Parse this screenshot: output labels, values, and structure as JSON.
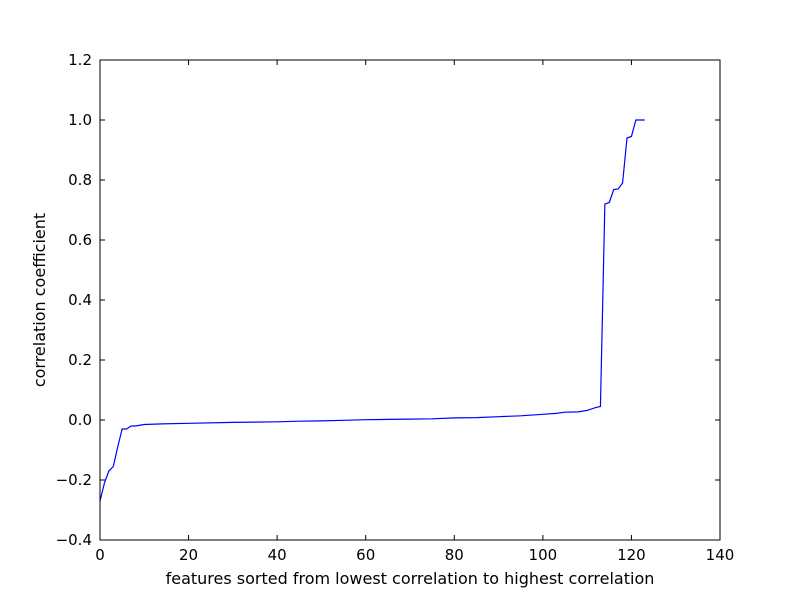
{
  "chart_data": {
    "type": "line",
    "title": "",
    "xlabel": "features sorted from lowest correlation to highest correlation",
    "ylabel": "correlation coefficient",
    "xlim": [
      0,
      140
    ],
    "ylim": [
      -0.4,
      1.2
    ],
    "x_ticks": [
      0,
      20,
      40,
      60,
      80,
      100,
      120,
      140
    ],
    "x_tick_labels": [
      "0",
      "20",
      "40",
      "60",
      "80",
      "100",
      "120",
      "140"
    ],
    "y_ticks": [
      -0.4,
      -0.2,
      0.0,
      0.2,
      0.4,
      0.6,
      0.8,
      1.0,
      1.2
    ],
    "y_tick_labels": [
      "−0.4",
      "−0.2",
      "0.0",
      "0.2",
      "0.4",
      "0.6",
      "0.8",
      "1.0",
      "1.2"
    ],
    "grid": false,
    "legend": "none",
    "line_color": "#0000ff",
    "series": [
      {
        "x": [
          0,
          1,
          2,
          3,
          4,
          5,
          6,
          7,
          8,
          10,
          14,
          20,
          30,
          40,
          45,
          50,
          55,
          60,
          65,
          70,
          75,
          80,
          85,
          90,
          95,
          100,
          103,
          105,
          108,
          110,
          112,
          113,
          114,
          115,
          116,
          117,
          118,
          119,
          120,
          121,
          122,
          123
        ],
        "y": [
          -0.27,
          -0.21,
          -0.17,
          -0.155,
          -0.09,
          -0.03,
          -0.03,
          -0.02,
          -0.02,
          -0.015,
          -0.013,
          -0.011,
          -0.008,
          -0.006,
          -0.004,
          -0.003,
          -0.001,
          0.001,
          0.002,
          0.003,
          0.004,
          0.007,
          0.008,
          0.011,
          0.014,
          0.019,
          0.022,
          0.026,
          0.027,
          0.032,
          0.042,
          0.045,
          0.72,
          0.725,
          0.768,
          0.77,
          0.79,
          0.94,
          0.945,
          1.0,
          1.0,
          1.0
        ]
      }
    ]
  }
}
